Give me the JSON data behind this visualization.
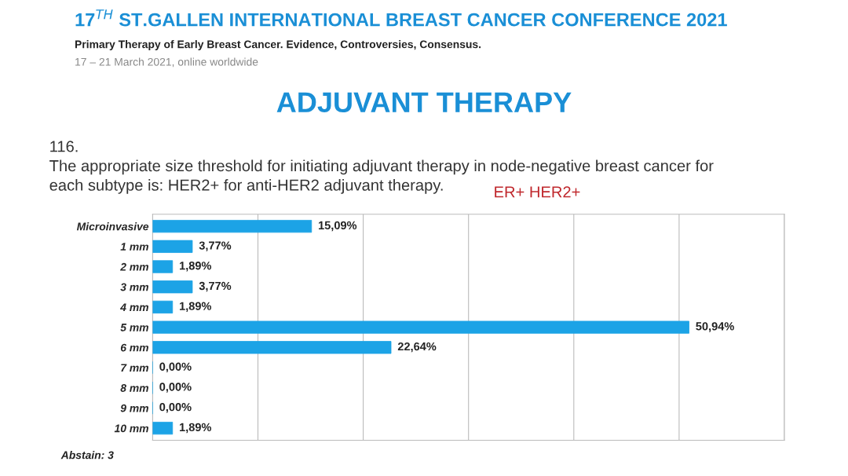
{
  "chart_data": {
    "type": "bar",
    "orientation": "horizontal",
    "title": "ADJUVANT THERAPY",
    "subtitle": "116.\nThe appropriate size threshold for initiating adjuvant therapy in node-negative breast cancer for\neach subtype is: HER2+ for anti-HER2 adjuvant therapy.",
    "categories": [
      "Microinvasive",
      "1 mm",
      "2 mm",
      "3 mm",
      "4 mm",
      "5 mm",
      "6 mm",
      "7 mm",
      "8 mm",
      "9 mm",
      "10 mm"
    ],
    "values": [
      15.09,
      3.77,
      1.89,
      3.77,
      1.89,
      50.94,
      22.64,
      0.0,
      0.0,
      0.0,
      1.89
    ],
    "value_labels": [
      "15,09%",
      "3,77%",
      "1,89%",
      "3,77%",
      "1,89%",
      "50,94%",
      "22,64%",
      "0,00%",
      "0,00%",
      "0,00%",
      "1,89%"
    ],
    "color": "#1ca3e6",
    "xlim": [
      0,
      60
    ],
    "xticks": [
      {
        "value": 0,
        "label": null
      },
      {
        "value": 10,
        "label": null
      },
      {
        "value": 20,
        "label": null
      },
      {
        "value": 30,
        "label": null
      },
      {
        "value": 40,
        "label": null
      },
      {
        "value": 50,
        "label": null
      },
      {
        "value": 60,
        "label": null
      }
    ],
    "tick_labels": "y",
    "grid": "x",
    "legend": false,
    "annotations": [
      "17$^{TH}$ ST.GALLEN INTERNATIONAL BREAST CANCER CONFERENCE 2021",
      "Primary Therapy of Early Breast Cancer. Evidence, Controversies, Consensus.",
      "17 – 21 March 2021, online worldwide",
      "ER+ HER2+",
      "Abstain: 3"
    ]
  }
}
